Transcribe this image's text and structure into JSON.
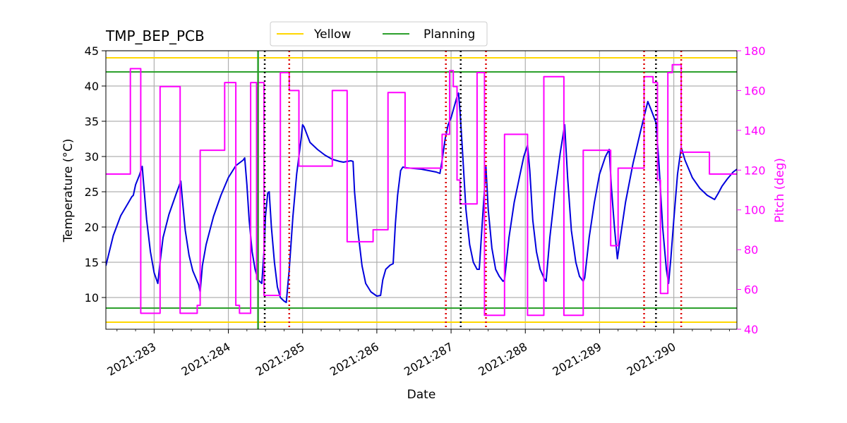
{
  "chart_data": {
    "type": "line",
    "title": "TMP_BEP_PCB",
    "xlabel": "Date",
    "ylabel": "Temperature ($^\\circ$C)",
    "ylabel_display": "Temperature (°C)",
    "y2label": "Pitch (deg)",
    "xlim": [
      282.35,
      290.85
    ],
    "ylim": [
      5.5,
      45
    ],
    "y2lim": [
      40,
      180
    ],
    "grid": true,
    "legend_placement": "top-center",
    "x_ticks": [
      {
        "value": 283,
        "label": "2021:283"
      },
      {
        "value": 284,
        "label": "2021:284"
      },
      {
        "value": 285,
        "label": "2021:285"
      },
      {
        "value": 286,
        "label": "2021:286"
      },
      {
        "value": 287,
        "label": "2021:287"
      },
      {
        "value": 288,
        "label": "2021:288"
      },
      {
        "value": 289,
        "label": "2021:289"
      },
      {
        "value": 290,
        "label": "2021:290"
      }
    ],
    "y_ticks": [
      10,
      15,
      20,
      25,
      30,
      35,
      40,
      45
    ],
    "y2_ticks": [
      40,
      60,
      80,
      100,
      120,
      140,
      160,
      180
    ],
    "colors": {
      "temperature": "#0000dd",
      "pitch": "#ff00ff",
      "yellow": "#ffd700",
      "planning": "#2ca02c",
      "grid": "#b0b0b0",
      "red_markers": "#dd0000",
      "black_markers": "#000000"
    },
    "legend": [
      {
        "label": "Yellow",
        "color": "#ffd700"
      },
      {
        "label": "Planning",
        "color": "#2ca02c"
      }
    ],
    "limit_lines": [
      {
        "series": "Yellow",
        "y": 44.0
      },
      {
        "series": "Yellow",
        "y": 6.5
      },
      {
        "series": "Planning",
        "y": 42.0
      },
      {
        "series": "Planning",
        "y": 8.5
      }
    ],
    "planning_vline_x": 284.4,
    "red_dotted_vlines_x": [
      284.82,
      286.93,
      287.47,
      289.6,
      290.1
    ],
    "black_dotted_vlines_x": [
      284.49,
      287.13,
      289.76
    ],
    "series": [
      {
        "axis": "left",
        "color": "#0000dd",
        "points": [
          [
            282.35,
            14.5
          ],
          [
            282.45,
            18.8
          ],
          [
            282.55,
            21.6
          ],
          [
            282.65,
            23.4
          ],
          [
            282.7,
            24.3
          ],
          [
            282.72,
            24.5
          ],
          [
            282.75,
            26.0
          ],
          [
            282.8,
            27.3
          ],
          [
            282.84,
            28.6
          ],
          [
            282.86,
            26.0
          ],
          [
            282.9,
            21.0
          ],
          [
            282.95,
            16.5
          ],
          [
            283.0,
            13.5
          ],
          [
            283.05,
            12.0
          ],
          [
            283.08,
            15.0
          ],
          [
            283.12,
            18.5
          ],
          [
            283.2,
            21.8
          ],
          [
            283.3,
            24.8
          ],
          [
            283.36,
            26.5
          ],
          [
            283.38,
            24.0
          ],
          [
            283.42,
            19.5
          ],
          [
            283.47,
            16.0
          ],
          [
            283.52,
            13.8
          ],
          [
            283.58,
            12.3
          ],
          [
            283.6,
            11.8
          ],
          [
            283.62,
            10.8
          ],
          [
            283.65,
            14.5
          ],
          [
            283.7,
            17.5
          ],
          [
            283.8,
            21.5
          ],
          [
            283.9,
            24.5
          ],
          [
            284.0,
            27.0
          ],
          [
            284.1,
            28.7
          ],
          [
            284.2,
            29.5
          ],
          [
            284.22,
            29.8
          ],
          [
            284.25,
            26.0
          ],
          [
            284.28,
            21.0
          ],
          [
            284.32,
            16.5
          ],
          [
            284.36,
            14.0
          ],
          [
            284.4,
            12.5
          ],
          [
            284.45,
            12.0
          ],
          [
            284.48,
            16.5
          ],
          [
            284.5,
            21.5
          ],
          [
            284.53,
            24.8
          ],
          [
            284.55,
            25.0
          ],
          [
            284.58,
            20.0
          ],
          [
            284.62,
            15.0
          ],
          [
            284.66,
            11.5
          ],
          [
            284.7,
            10.0
          ],
          [
            284.75,
            9.5
          ],
          [
            284.78,
            9.3
          ],
          [
            284.82,
            14.0
          ],
          [
            284.87,
            21.5
          ],
          [
            284.92,
            27.5
          ],
          [
            284.98,
            32.5
          ],
          [
            285.0,
            34.5
          ],
          [
            285.02,
            34.2
          ],
          [
            285.1,
            32.0
          ],
          [
            285.2,
            31.0
          ],
          [
            285.3,
            30.2
          ],
          [
            285.4,
            29.6
          ],
          [
            285.5,
            29.3
          ],
          [
            285.55,
            29.2
          ],
          [
            285.6,
            29.3
          ],
          [
            285.65,
            29.4
          ],
          [
            285.68,
            29.3
          ],
          [
            285.7,
            25.0
          ],
          [
            285.75,
            19.0
          ],
          [
            285.8,
            14.5
          ],
          [
            285.85,
            12.0
          ],
          [
            285.92,
            10.8
          ],
          [
            286.0,
            10.2
          ],
          [
            286.05,
            10.3
          ],
          [
            286.08,
            12.5
          ],
          [
            286.12,
            14.0
          ],
          [
            286.18,
            14.6
          ],
          [
            286.22,
            14.8
          ],
          [
            286.25,
            20.5
          ],
          [
            286.28,
            24.5
          ],
          [
            286.32,
            28.0
          ],
          [
            286.35,
            28.5
          ],
          [
            286.4,
            28.4
          ],
          [
            286.6,
            28.2
          ],
          [
            286.8,
            27.8
          ],
          [
            286.85,
            27.6
          ],
          [
            286.88,
            29.5
          ],
          [
            286.92,
            32.5
          ],
          [
            286.96,
            34.5
          ],
          [
            287.0,
            35.5
          ],
          [
            287.04,
            37.0
          ],
          [
            287.08,
            38.5
          ],
          [
            287.1,
            39.0
          ],
          [
            287.12,
            36.5
          ],
          [
            287.15,
            31.5
          ],
          [
            287.2,
            22.5
          ],
          [
            287.25,
            17.5
          ],
          [
            287.3,
            15.0
          ],
          [
            287.35,
            14.0
          ],
          [
            287.38,
            14.0
          ],
          [
            287.42,
            20.5
          ],
          [
            287.47,
            28.5
          ],
          [
            287.5,
            22.5
          ],
          [
            287.55,
            17.0
          ],
          [
            287.6,
            14.0
          ],
          [
            287.65,
            13.0
          ],
          [
            287.7,
            12.3
          ],
          [
            287.72,
            12.5
          ],
          [
            287.78,
            18.5
          ],
          [
            287.85,
            23.5
          ],
          [
            287.92,
            27.0
          ],
          [
            287.98,
            30.0
          ],
          [
            288.03,
            31.6
          ],
          [
            288.06,
            28.0
          ],
          [
            288.1,
            21.0
          ],
          [
            288.15,
            16.5
          ],
          [
            288.2,
            14.0
          ],
          [
            288.25,
            12.8
          ],
          [
            288.28,
            12.3
          ],
          [
            288.33,
            18.5
          ],
          [
            288.4,
            25.0
          ],
          [
            288.47,
            30.5
          ],
          [
            288.53,
            34.5
          ],
          [
            288.57,
            27.0
          ],
          [
            288.62,
            19.5
          ],
          [
            288.68,
            15.0
          ],
          [
            288.73,
            13.0
          ],
          [
            288.78,
            12.3
          ],
          [
            288.8,
            12.8
          ],
          [
            288.86,
            18.5
          ],
          [
            288.93,
            23.5
          ],
          [
            289.0,
            27.5
          ],
          [
            289.08,
            30.0
          ],
          [
            289.13,
            31.0
          ],
          [
            289.16,
            25.5
          ],
          [
            289.2,
            20.0
          ],
          [
            289.24,
            15.5
          ],
          [
            289.28,
            18.5
          ],
          [
            289.35,
            23.5
          ],
          [
            289.45,
            29.0
          ],
          [
            289.55,
            33.5
          ],
          [
            289.62,
            36.5
          ],
          [
            289.65,
            37.8
          ],
          [
            289.7,
            36.5
          ],
          [
            289.76,
            34.8
          ],
          [
            289.8,
            29.0
          ],
          [
            289.85,
            20.0
          ],
          [
            289.9,
            14.0
          ],
          [
            289.93,
            12.0
          ],
          [
            289.96,
            15.5
          ],
          [
            290.0,
            21.0
          ],
          [
            290.05,
            27.5
          ],
          [
            290.1,
            31.3
          ],
          [
            290.15,
            29.5
          ],
          [
            290.25,
            27.0
          ],
          [
            290.35,
            25.5
          ],
          [
            290.45,
            24.5
          ],
          [
            290.55,
            23.9
          ],
          [
            290.6,
            24.8
          ],
          [
            290.65,
            25.8
          ],
          [
            290.72,
            26.8
          ],
          [
            290.8,
            27.8
          ],
          [
            290.85,
            28.2
          ]
        ]
      },
      {
        "axis": "right",
        "color": "#ff00ff",
        "points": [
          [
            282.35,
            118
          ],
          [
            282.68,
            118
          ],
          [
            282.68,
            171
          ],
          [
            282.82,
            171
          ],
          [
            282.82,
            48
          ],
          [
            283.08,
            48
          ],
          [
            283.08,
            162
          ],
          [
            283.35,
            162
          ],
          [
            283.35,
            48
          ],
          [
            283.58,
            48
          ],
          [
            283.58,
            52
          ],
          [
            283.62,
            52
          ],
          [
            283.62,
            130
          ],
          [
            283.95,
            130
          ],
          [
            283.95,
            164
          ],
          [
            284.1,
            164
          ],
          [
            284.1,
            52
          ],
          [
            284.15,
            52
          ],
          [
            284.15,
            48
          ],
          [
            284.3,
            48
          ],
          [
            284.3,
            164
          ],
          [
            284.38,
            164
          ],
          [
            284.38,
            65
          ],
          [
            284.4,
            65
          ],
          [
            284.4,
            164
          ],
          [
            284.48,
            164
          ],
          [
            284.48,
            57
          ],
          [
            284.7,
            57
          ],
          [
            284.7,
            169
          ],
          [
            284.82,
            169
          ],
          [
            284.82,
            160
          ],
          [
            284.95,
            160
          ],
          [
            284.95,
            122
          ],
          [
            285.4,
            122
          ],
          [
            285.4,
            160
          ],
          [
            285.6,
            160
          ],
          [
            285.6,
            84
          ],
          [
            285.95,
            84
          ],
          [
            285.95,
            90
          ],
          [
            286.15,
            90
          ],
          [
            286.15,
            159
          ],
          [
            286.38,
            159
          ],
          [
            286.38,
            121
          ],
          [
            286.88,
            121
          ],
          [
            286.88,
            138
          ],
          [
            286.98,
            138
          ],
          [
            286.98,
            170
          ],
          [
            287.03,
            170
          ],
          [
            287.03,
            162
          ],
          [
            287.08,
            162
          ],
          [
            287.08,
            115
          ],
          [
            287.12,
            115
          ],
          [
            287.12,
            103
          ],
          [
            287.35,
            103
          ],
          [
            287.35,
            169
          ],
          [
            287.45,
            169
          ],
          [
            287.45,
            47
          ],
          [
            287.72,
            47
          ],
          [
            287.72,
            138
          ],
          [
            288.03,
            138
          ],
          [
            288.03,
            47
          ],
          [
            288.25,
            47
          ],
          [
            288.25,
            167
          ],
          [
            288.52,
            167
          ],
          [
            288.52,
            47
          ],
          [
            288.78,
            47
          ],
          [
            288.78,
            130
          ],
          [
            289.15,
            130
          ],
          [
            289.15,
            82
          ],
          [
            289.25,
            82
          ],
          [
            289.25,
            121
          ],
          [
            289.6,
            121
          ],
          [
            289.6,
            167
          ],
          [
            289.72,
            167
          ],
          [
            289.72,
            164
          ],
          [
            289.78,
            164
          ],
          [
            289.78,
            115
          ],
          [
            289.82,
            115
          ],
          [
            289.82,
            58
          ],
          [
            289.92,
            58
          ],
          [
            289.92,
            169
          ],
          [
            289.98,
            169
          ],
          [
            289.98,
            173
          ],
          [
            290.1,
            173
          ],
          [
            290.1,
            129
          ],
          [
            290.48,
            129
          ],
          [
            290.48,
            118
          ],
          [
            290.85,
            118
          ]
        ]
      }
    ]
  }
}
